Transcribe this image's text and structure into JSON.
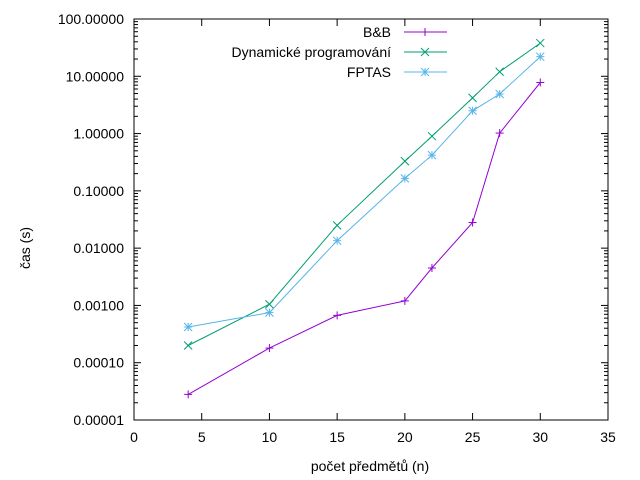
{
  "chart_data": {
    "type": "line",
    "xlabel": "počet předmětů (n)",
    "ylabel": "čas (s)",
    "xlim": [
      0,
      35
    ],
    "ylim": [
      1e-05,
      100
    ],
    "yscale": "log",
    "grid": false,
    "legend_position": "top-right",
    "xticks": [
      "0",
      "5",
      "10",
      "15",
      "20",
      "25",
      "30",
      "35"
    ],
    "yticks": [
      "0.00001",
      "0.00010",
      "0.00100",
      "0.01000",
      "0.10000",
      "1.00000",
      "10.00000",
      "100.00000"
    ],
    "series": [
      {
        "name": "B&B",
        "color": "#9400d3",
        "marker": "plus",
        "x": [
          4,
          10,
          15,
          20,
          22,
          25,
          27,
          30
        ],
        "y": [
          2.8e-05,
          0.00018,
          0.00067,
          0.0012,
          0.0045,
          0.028,
          1.02,
          7.8
        ]
      },
      {
        "name": "Dynamické programování",
        "color": "#009e73",
        "marker": "cross",
        "x": [
          4,
          10,
          15,
          20,
          22,
          25,
          27,
          30
        ],
        "y": [
          0.0002,
          0.00105,
          0.025,
          0.33,
          0.9,
          4.2,
          12.0,
          38.0
        ]
      },
      {
        "name": "FPTAS",
        "color": "#56b4e9",
        "marker": "star",
        "x": [
          4,
          10,
          15,
          20,
          22,
          25,
          27,
          30
        ],
        "y": [
          0.00042,
          0.00075,
          0.0135,
          0.165,
          0.42,
          2.5,
          4.9,
          22.0
        ]
      }
    ]
  }
}
